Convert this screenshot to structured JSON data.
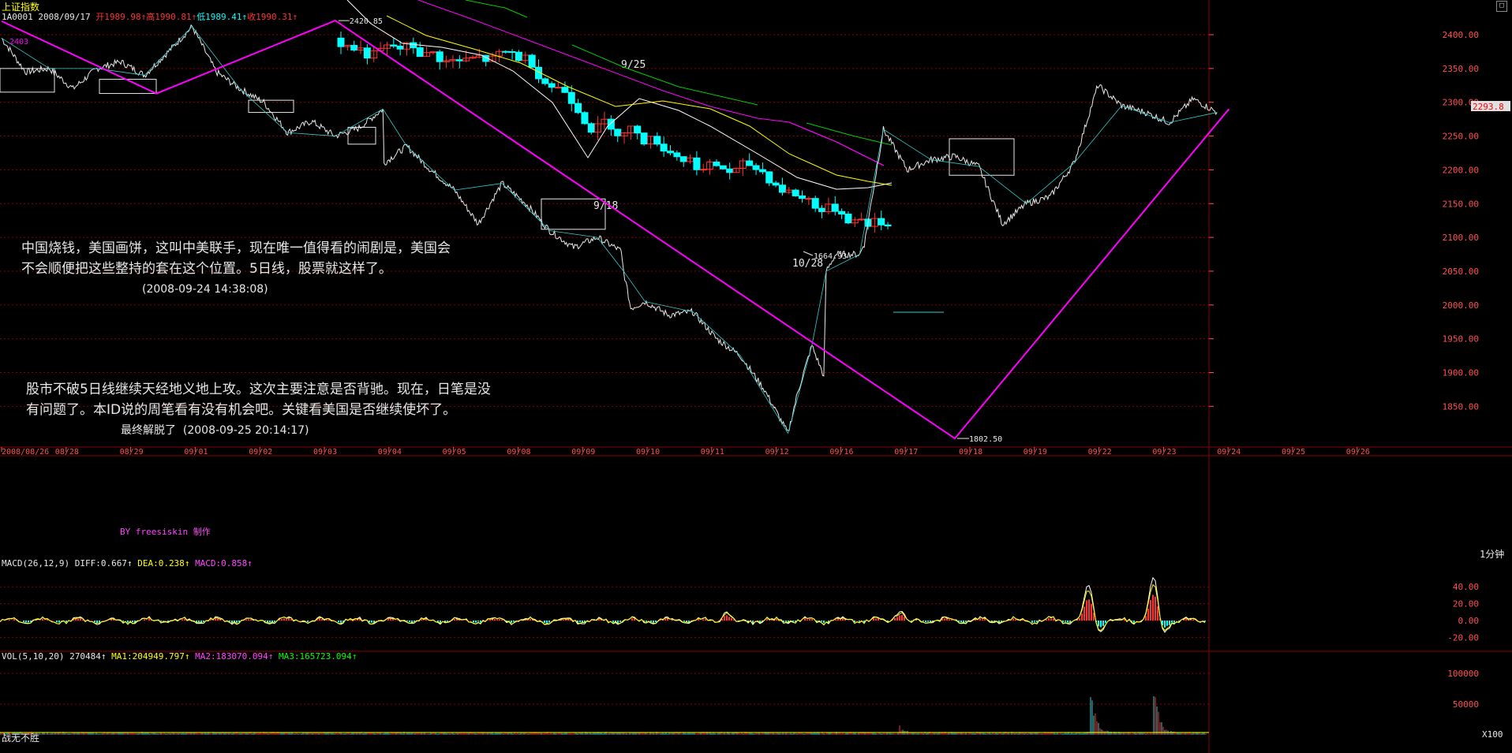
{
  "window": {
    "title": "上证指数",
    "resize_glyph": "□"
  },
  "quote_bar": {
    "code_date": "1A0001 2008/09/17",
    "open": "开1989.98",
    "high": "高1990.81",
    "low": "低1989.41",
    "close": "收1990.31"
  },
  "annotations": {
    "note1_line1": "中国烧钱，美国画饼，这叫中美联手，现在唯一值得看的闹剧是，美国会",
    "note1_line2": "不会顺便把这些整持的套在这个位置。5日线，股票就这样了。",
    "note1_time": "(2008-09-24 14:38:08)",
    "note2_line1": "股市不破5日线继续天经地义地上攻。这次主要注意是否背驰。现在，日笔是没",
    "note2_line2": "有问题了。本ID说的周笔看有没有机会吧。关键看美国是否继续使坏了。",
    "note2_extra": "最终解脱了",
    "note2_time": "(2008-09-25 20:14:17)",
    "credit": "BY freesiskin 制作"
  },
  "chart_data": {
    "type": "line",
    "title": "上证指数",
    "ylim": [
      1790,
      2440
    ],
    "y_ticks": [
      2400,
      2350,
      2300,
      2250,
      2200,
      2150,
      2100,
      2050,
      2000,
      1950,
      1900,
      1850
    ],
    "y_tick_labels": [
      "2400.00",
      "2350.00",
      "2300.00",
      "2250.00",
      "2200.00",
      "2150.00",
      "2100.00",
      "2050.00",
      "2000.00",
      "1950.00",
      "1900.00",
      "1850.00"
    ],
    "current_price_label": "2293.8",
    "current_price": 2293.8,
    "x_labels": [
      "2008/08/26",
      "08/28",
      "08/29",
      "09/01",
      "09/02",
      "09/03",
      "09/04",
      "09/05",
      "09/08",
      "09/09",
      "09/10",
      "09/11",
      "09/12",
      "09/16",
      "09/17",
      "09/18",
      "09/19",
      "09/22",
      "09/23",
      "09/24",
      "09/25",
      "09/26"
    ],
    "period_label": "1分钟",
    "intraday": {
      "name": "1-minute price",
      "anchors": [
        [
          0,
          2395
        ],
        [
          1,
          2345
        ],
        [
          2,
          2350
        ],
        [
          3,
          2320
        ],
        [
          4,
          2350
        ],
        [
          5,
          2360
        ],
        [
          6,
          2340
        ],
        [
          7,
          2375
        ],
        [
          8,
          2412
        ],
        [
          9,
          2345
        ],
        [
          10,
          2320
        ],
        [
          11,
          2300
        ],
        [
          12,
          2255
        ],
        [
          13,
          2272
        ],
        [
          14,
          2250
        ],
        [
          15,
          2262
        ],
        [
          16,
          2290
        ],
        [
          16.05,
          2210
        ],
        [
          17,
          2235
        ],
        [
          18,
          2200
        ],
        [
          19,
          2170
        ],
        [
          20,
          2120
        ],
        [
          21,
          2180
        ],
        [
          22,
          2150
        ],
        [
          23,
          2110
        ],
        [
          24,
          2085
        ],
        [
          25,
          2100
        ],
        [
          26,
          2080
        ],
        [
          26.1,
          2050
        ],
        [
          26.4,
          1995
        ],
        [
          27,
          2005
        ],
        [
          28,
          1985
        ],
        [
          29,
          1990
        ],
        [
          30,
          1950
        ],
        [
          31,
          1925
        ],
        [
          32,
          1875
        ],
        [
          33,
          1810
        ],
        [
          33.4,
          1870
        ],
        [
          34,
          1940
        ],
        [
          34.5,
          1895
        ],
        [
          34.6,
          2050
        ],
        [
          35,
          2075
        ],
        [
          36,
          2075
        ],
        [
          36.2,
          2090
        ],
        [
          37,
          2260
        ],
        [
          38,
          2200
        ],
        [
          39,
          2215
        ],
        [
          40,
          2220
        ],
        [
          41,
          2205
        ],
        [
          42,
          2120
        ],
        [
          43,
          2150
        ],
        [
          44,
          2160
        ],
        [
          45,
          2210
        ],
        [
          46,
          2325
        ],
        [
          47,
          2295
        ],
        [
          48,
          2285
        ],
        [
          49,
          2270
        ],
        [
          50,
          2305
        ],
        [
          51,
          2285
        ]
      ]
    },
    "pivots": {
      "name": "日笔",
      "points": [
        [
          0,
          2420
        ],
        [
          6.5,
          2313
        ],
        [
          14,
          2420.85
        ],
        [
          40,
          1802.5
        ],
        [
          51.5,
          2290
        ]
      ],
      "high_label": "2420.85",
      "low_label": "1802.50",
      "left_label": "2403"
    },
    "daily_overlay": {
      "first_label": "1664.93",
      "labels": [
        "9/18",
        "9/25",
        "10/28"
      ]
    },
    "macd": {
      "label": "MACD(26,12,9)",
      "diff": "DIFF:0.667",
      "dea": "DEA:0.238",
      "macd": "MACD:0.858",
      "y_ticks": [
        40,
        20,
        0,
        -20
      ],
      "y_tick_labels": [
        "40.00",
        "20.00",
        "0.00",
        "-20.00"
      ],
      "ylim": [
        -30,
        55
      ],
      "spikes": [
        [
          1380,
          42
        ],
        [
          1462,
          48
        ],
        [
          920,
          10
        ],
        [
          1140,
          12
        ],
        [
          1700,
          18
        ]
      ]
    },
    "volume": {
      "label": "VOL(5,10,20)",
      "value": "270484",
      "ma1": "MA1:204949.797",
      "ma2": "MA2:183070.094",
      "ma3": "MA3:165723.094",
      "y_ticks": [
        100000,
        50000
      ],
      "y_tick_labels": [
        "100000",
        "50000"
      ],
      "unit": "X100",
      "ylim": [
        0,
        130000
      ],
      "spikes": [
        [
          1382,
          110000
        ],
        [
          1462,
          95000
        ],
        [
          1545,
          42000
        ],
        [
          1140,
          12000
        ],
        [
          1700,
          8000
        ]
      ]
    },
    "colors": {
      "background": "#000000",
      "grid": "#8a0000",
      "price": "#e8e8e8",
      "pivot": "#ff00ff",
      "up": "#ff3232",
      "down": "#00ffff",
      "ma_white": "#ffffff",
      "ma_yellow": "#ffff00",
      "ma_magenta": "#ff00ff",
      "ma_green": "#00cc00",
      "axis_text": "#ff5050"
    }
  },
  "status": {
    "bottom_left": "战无不胜"
  }
}
